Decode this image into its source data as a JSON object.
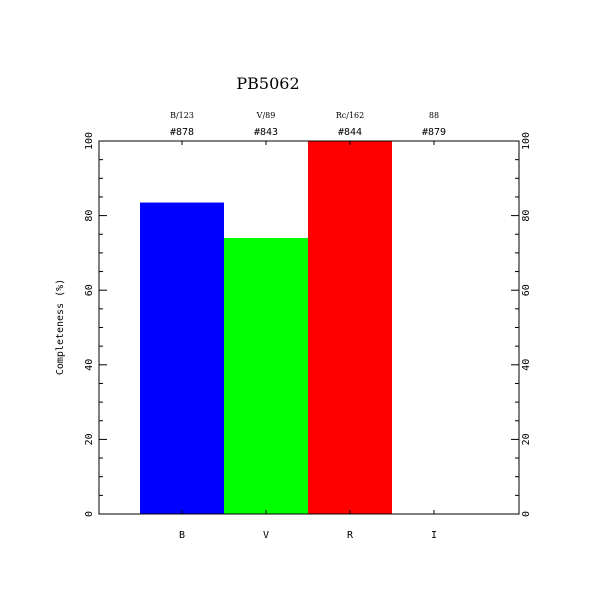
{
  "chart_data": {
    "type": "bar",
    "title": "PB5062",
    "ylabel": "Completeness (%)",
    "xlabel": "",
    "ylim": [
      0,
      100
    ],
    "y_ticks": [
      0,
      20,
      40,
      60,
      80,
      100
    ],
    "grid": false,
    "categories": [
      "B",
      "V",
      "R",
      "I"
    ],
    "values": [
      83.5,
      74,
      100,
      0
    ],
    "colors": [
      "#0000ff",
      "#00ff00",
      "#ff0000",
      "#ffffff"
    ],
    "filter_labels": [
      "B/123",
      "V/89",
      "Rc/162",
      "88"
    ],
    "frame_labels": [
      "#878",
      "#843",
      "#844",
      "#879"
    ]
  }
}
